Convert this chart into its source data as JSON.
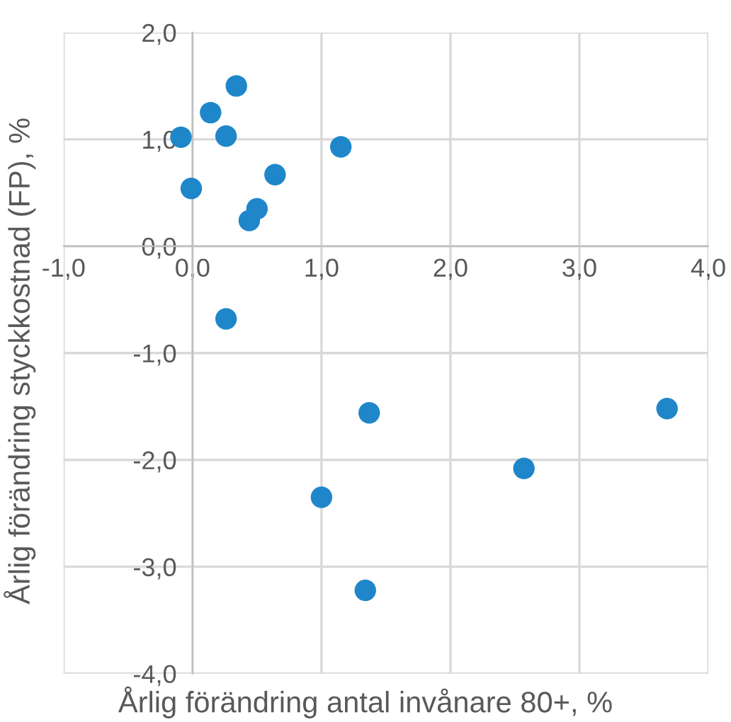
{
  "chart_data": {
    "type": "scatter",
    "xlabel": "Årlig förändring antal invånare 80+, %",
    "ylabel": "Årlig förändring styckkostnad (FP), %",
    "x": [
      -0.09,
      -0.01,
      0.14,
      0.34,
      0.26,
      0.64,
      0.5,
      0.44,
      1.15,
      0.26,
      1.37,
      1.0,
      2.57,
      3.68,
      1.34
    ],
    "series": [
      {
        "color": "#1f87c9",
        "values": [
          1.02,
          0.54,
          1.25,
          1.5,
          1.03,
          0.67,
          0.35,
          0.24,
          0.93,
          -0.68,
          -1.56,
          -2.35,
          -2.08,
          -1.52,
          -3.22
        ]
      }
    ],
    "xlim": [
      -1,
      4
    ],
    "ylim": [
      -4,
      2
    ],
    "xticks": [
      {
        "value": -1,
        "label": "-1,0"
      },
      {
        "value": 0,
        "label": "0,0"
      },
      {
        "value": 1,
        "label": "1,0"
      },
      {
        "value": 2,
        "label": "2,0"
      },
      {
        "value": 3,
        "label": "3,0"
      },
      {
        "value": 4,
        "label": "4,0"
      }
    ],
    "yticks": [
      {
        "value": -4,
        "label": "-4,0"
      },
      {
        "value": -3,
        "label": "-3,0"
      },
      {
        "value": -2,
        "label": "-2,0"
      },
      {
        "value": -1,
        "label": "-1,0"
      },
      {
        "value": 0,
        "label": "0,0"
      },
      {
        "value": 1,
        "label": "1,0"
      },
      {
        "value": 2,
        "label": "2,0"
      }
    ],
    "grid": true,
    "marker": "circle"
  }
}
